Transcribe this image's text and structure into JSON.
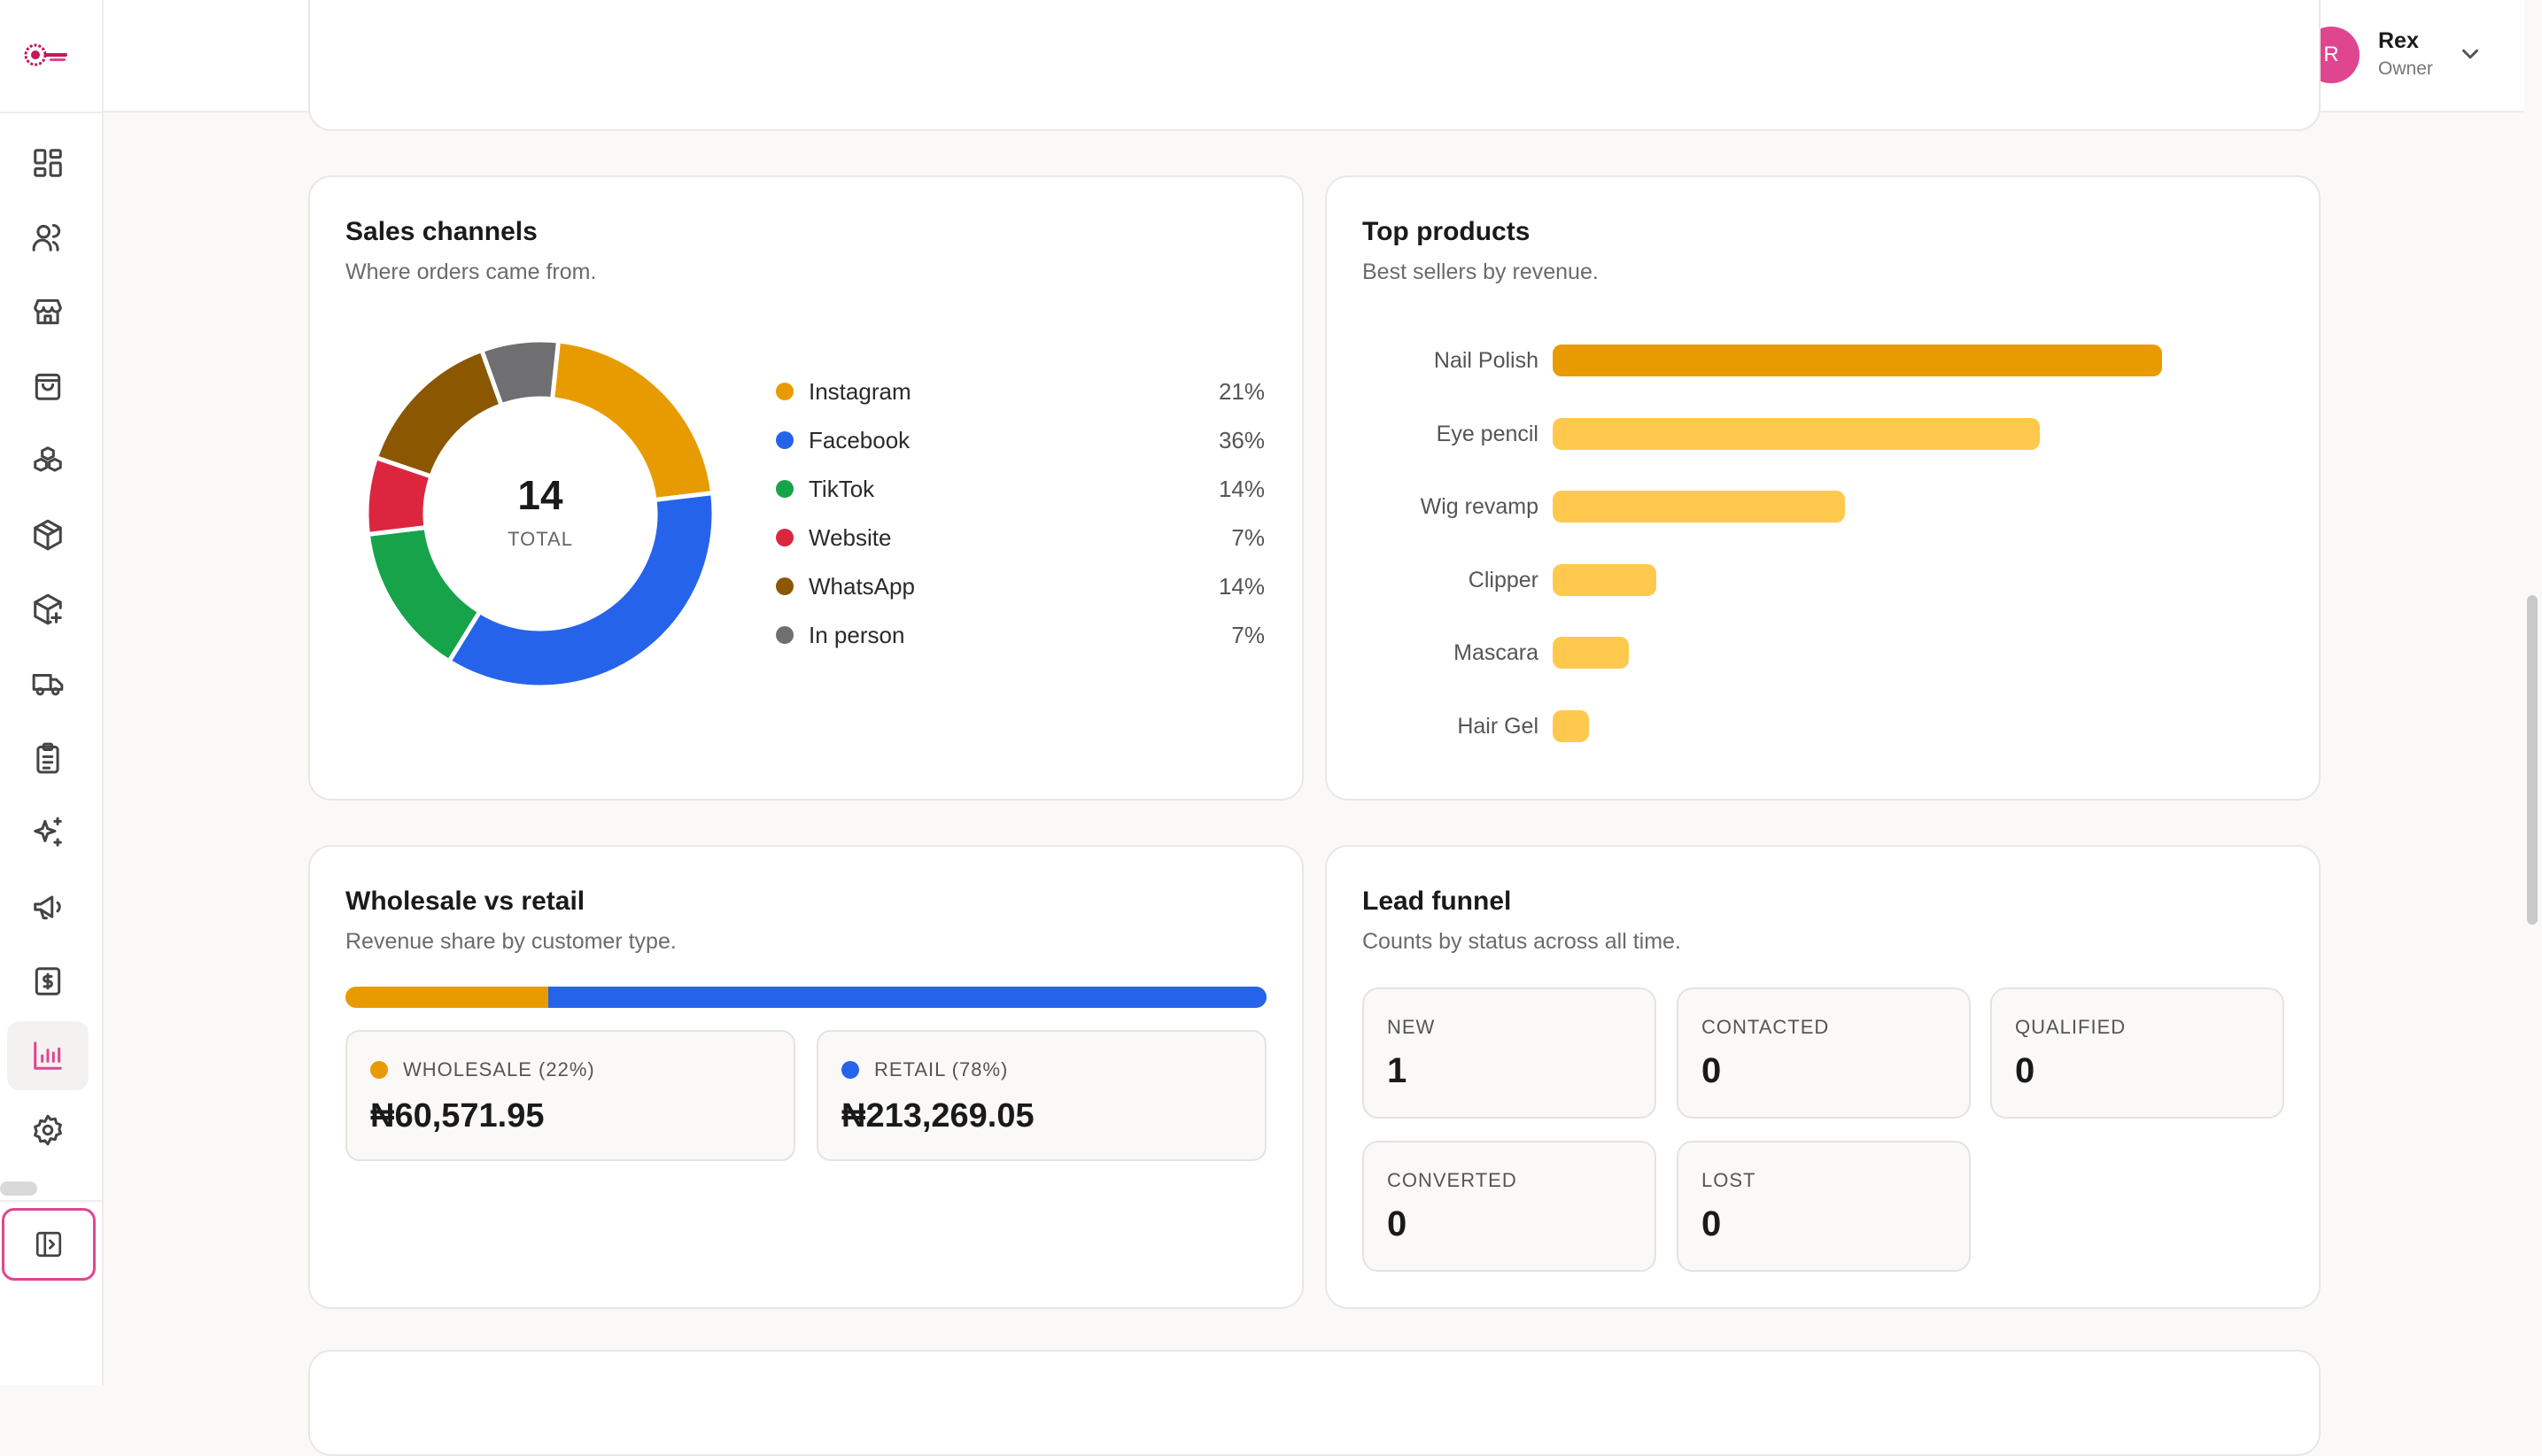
{
  "header": {
    "avatar_initial": "R",
    "user_name": "Rex",
    "user_role": "Owner"
  },
  "sidebar": {
    "items": [
      {
        "icon": "dashboard-icon"
      },
      {
        "icon": "users-icon"
      },
      {
        "icon": "store-icon"
      },
      {
        "icon": "shopping-bag-icon"
      },
      {
        "icon": "boxes-icon"
      },
      {
        "icon": "package-icon"
      },
      {
        "icon": "package-plus-icon"
      },
      {
        "icon": "truck-icon"
      },
      {
        "icon": "clipboard-list-icon"
      },
      {
        "icon": "sparkles-icon"
      },
      {
        "icon": "megaphone-icon"
      },
      {
        "icon": "receipt-dollar-icon"
      },
      {
        "icon": "bar-chart-icon",
        "active": true
      },
      {
        "icon": "settings-icon"
      }
    ],
    "collapse_icon": "sidebar-toggle-icon"
  },
  "sales_channels": {
    "title": "Sales channels",
    "subtitle": "Where orders came from.",
    "total": "14",
    "total_label": "TOTAL"
  },
  "top_products": {
    "title": "Top products",
    "subtitle": "Best sellers by revenue."
  },
  "wholesale_retail": {
    "title": "Wholesale vs retail",
    "subtitle": "Revenue share by customer type.",
    "wholesale_share": 22,
    "retail_share": 78,
    "wholesale_label": "WHOLESALE (22%)",
    "wholesale_value": "₦60,571.95",
    "retail_label": "RETAIL (78%)",
    "retail_value": "₦213,269.05",
    "colors": {
      "wholesale": "#e89b00",
      "retail": "#2563eb"
    }
  },
  "lead_funnel": {
    "title": "Lead funnel",
    "subtitle": "Counts by status across all time.",
    "stages": [
      {
        "label": "NEW",
        "value": "1"
      },
      {
        "label": "CONTACTED",
        "value": "0"
      },
      {
        "label": "QUALIFIED",
        "value": "0"
      },
      {
        "label": "CONVERTED",
        "value": "0"
      },
      {
        "label": "LOST",
        "value": "0"
      }
    ]
  },
  "chart_data": [
    {
      "type": "pie",
      "categories": [
        "Instagram",
        "Facebook",
        "TikTok",
        "Website",
        "WhatsApp",
        "In person"
      ],
      "values": [
        3,
        5,
        2,
        1,
        2,
        1
      ],
      "percent_labels": [
        "21%",
        "36%",
        "14%",
        "7%",
        "14%",
        "7%"
      ],
      "colors": [
        "#e89b00",
        "#2563eb",
        "#16a34a",
        "#dc2640",
        "#8b5700",
        "#6f6f72"
      ],
      "total": 14
    },
    {
      "type": "bar",
      "orientation": "horizontal",
      "categories": [
        "Nail Polish",
        "Eye pencil",
        "Wig revamp",
        "Clipper",
        "Mascara",
        "Hair Gel"
      ],
      "values": [
        100,
        80,
        48,
        17,
        12.5,
        6
      ],
      "colors": {
        "top": "#e89b00",
        "rest": "#ffc94d"
      }
    }
  ]
}
